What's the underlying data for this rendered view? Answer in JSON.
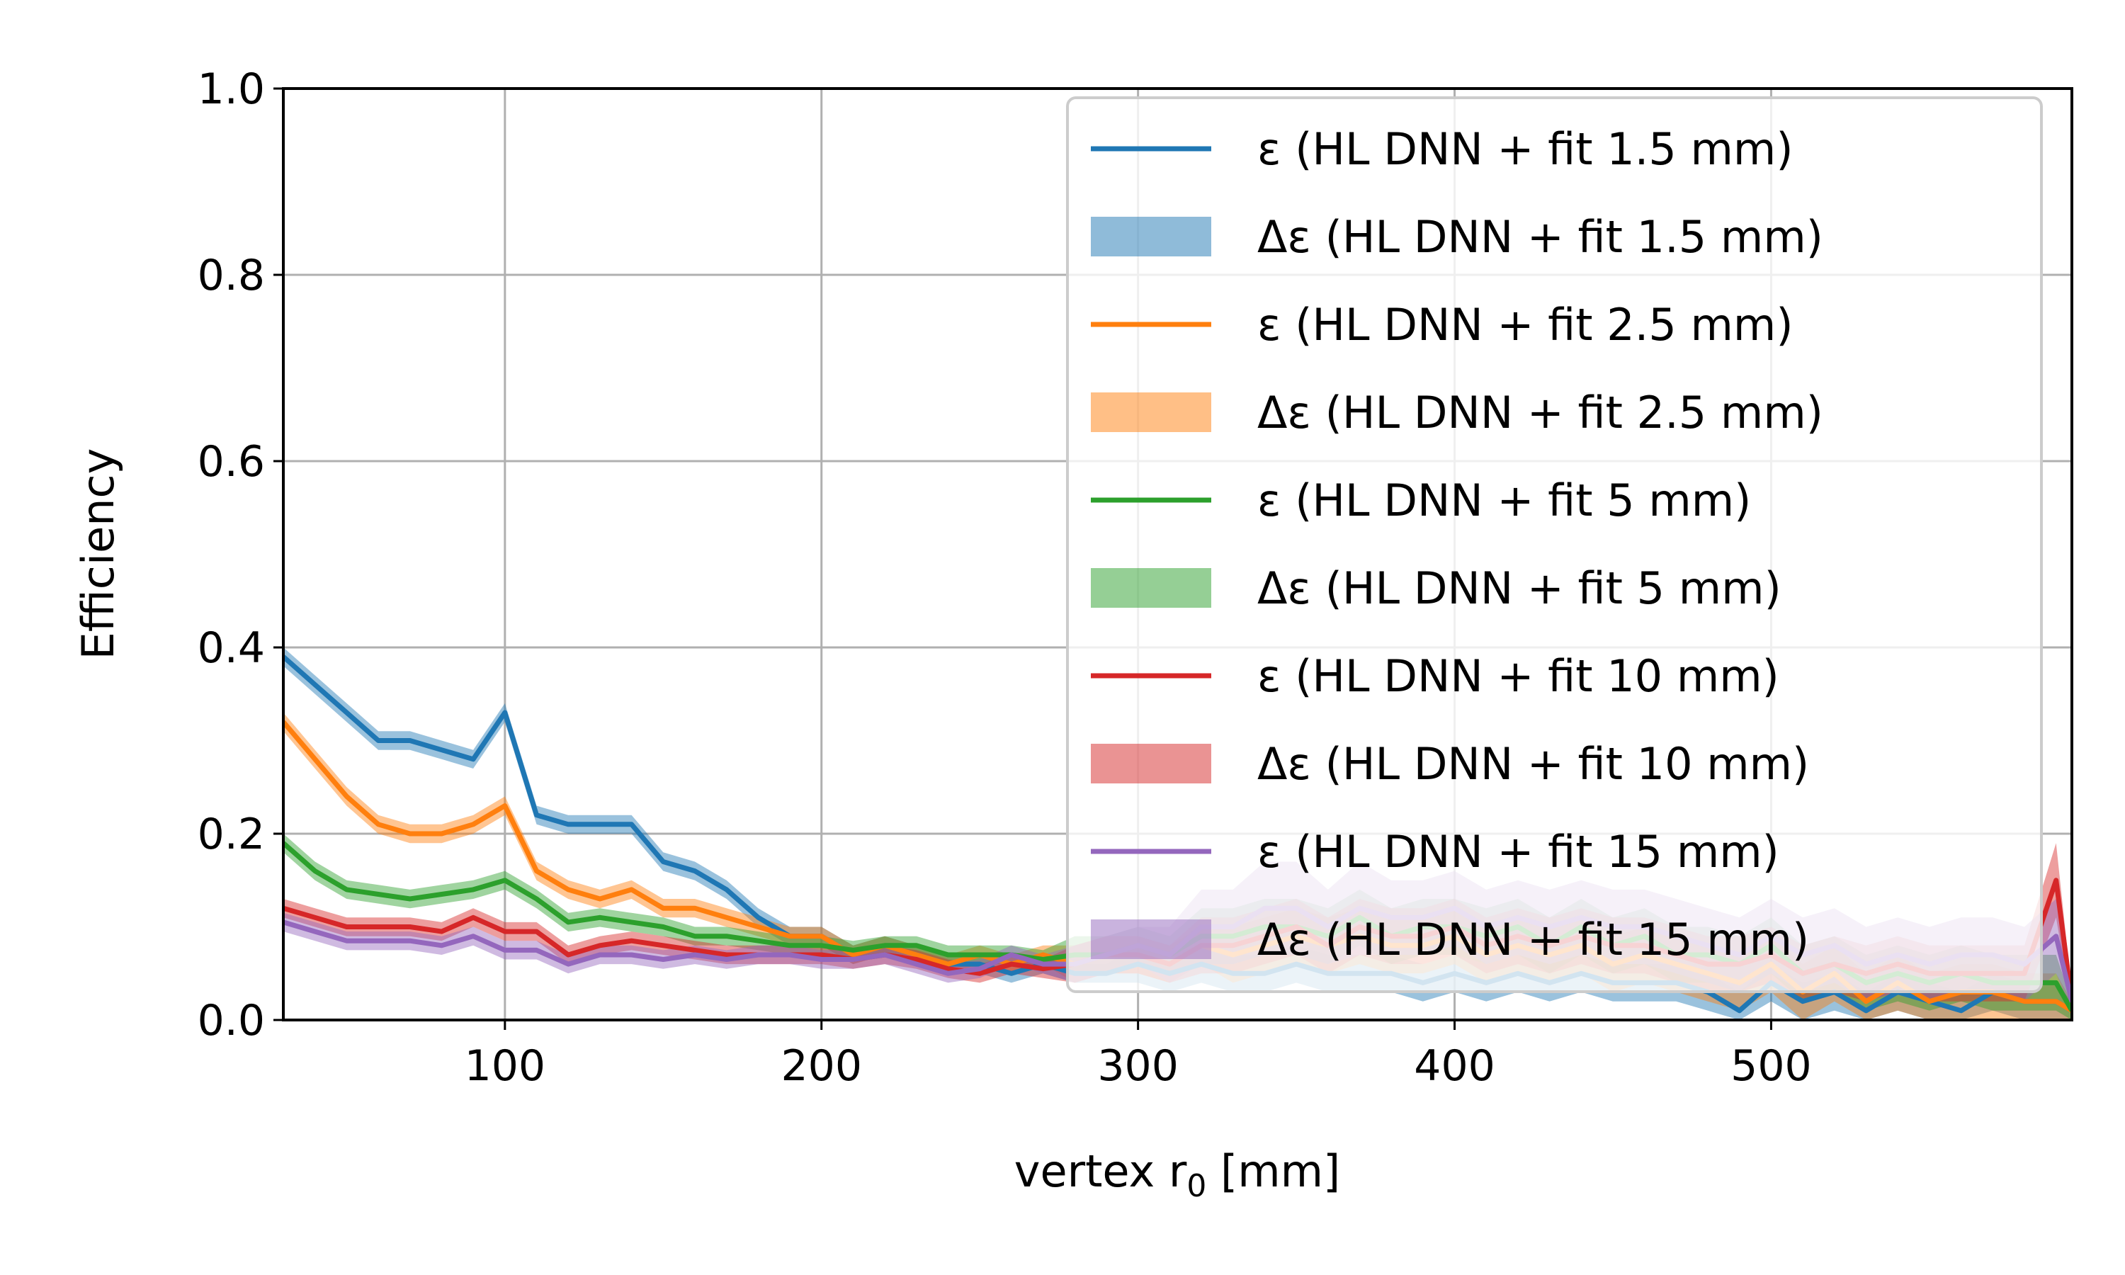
{
  "chart_data": {
    "type": "line",
    "title": "",
    "xlabel": "vertex r",
    "xlabel_subscript": "0",
    "xlabel_unit": " [mm]",
    "ylabel": "Efficiency",
    "xlim": [
      30,
      595
    ],
    "ylim": [
      0.0,
      1.0
    ],
    "xticks": [
      100,
      200,
      300,
      400,
      500
    ],
    "xtick_labels": [
      "100",
      "200",
      "300",
      "400",
      "500"
    ],
    "yticks": [
      0.0,
      0.2,
      0.4,
      0.6,
      0.8,
      1.0
    ],
    "ytick_labels": [
      "0.0",
      "0.2",
      "0.4",
      "0.6",
      "0.8",
      "1.0"
    ],
    "grid": true,
    "legend_position": "top-right",
    "x": [
      30,
      40,
      50,
      60,
      70,
      80,
      90,
      100,
      110,
      120,
      130,
      140,
      150,
      160,
      170,
      180,
      190,
      200,
      210,
      220,
      230,
      240,
      250,
      260,
      270,
      280,
      290,
      300,
      310,
      320,
      330,
      340,
      350,
      360,
      370,
      380,
      390,
      400,
      410,
      420,
      430,
      440,
      450,
      460,
      470,
      480,
      490,
      500,
      510,
      520,
      530,
      540,
      550,
      560,
      570,
      580,
      590,
      595
    ],
    "series": [
      {
        "name": "ε (HL DNN + fit 1.5 mm)",
        "band_name": "Δε (HL DNN + fit 1.5 mm)",
        "color": "#1f77b4",
        "band_color": "#1f77b4",
        "y": [
          0.39,
          0.36,
          0.33,
          0.3,
          0.3,
          0.29,
          0.28,
          0.33,
          0.22,
          0.21,
          0.21,
          0.21,
          0.17,
          0.16,
          0.14,
          0.11,
          0.09,
          0.09,
          0.07,
          0.08,
          0.07,
          0.06,
          0.06,
          0.05,
          0.06,
          0.05,
          0.05,
          0.06,
          0.05,
          0.06,
          0.05,
          0.05,
          0.06,
          0.05,
          0.05,
          0.05,
          0.04,
          0.05,
          0.04,
          0.05,
          0.04,
          0.05,
          0.04,
          0.04,
          0.04,
          0.03,
          0.01,
          0.04,
          0.02,
          0.03,
          0.01,
          0.03,
          0.02,
          0.01,
          0.03,
          0.02,
          0.02,
          0.01
        ],
        "err": [
          0.01,
          0.01,
          0.01,
          0.01,
          0.01,
          0.01,
          0.01,
          0.01,
          0.01,
          0.01,
          0.01,
          0.01,
          0.01,
          0.01,
          0.01,
          0.01,
          0.01,
          0.01,
          0.01,
          0.01,
          0.01,
          0.01,
          0.01,
          0.01,
          0.01,
          0.01,
          0.01,
          0.02,
          0.02,
          0.02,
          0.02,
          0.02,
          0.02,
          0.02,
          0.02,
          0.02,
          0.02,
          0.02,
          0.02,
          0.02,
          0.02,
          0.02,
          0.02,
          0.02,
          0.02,
          0.02,
          0.02,
          0.02,
          0.02,
          0.02,
          0.02,
          0.02,
          0.02,
          0.02,
          0.02,
          0.02,
          0.02,
          0.01
        ]
      },
      {
        "name": "ε (HL DNN + fit 2.5 mm)",
        "band_name": "Δε (HL DNN + fit 2.5 mm)",
        "color": "#ff7f0e",
        "band_color": "#ff7f0e",
        "y": [
          0.32,
          0.28,
          0.24,
          0.21,
          0.2,
          0.2,
          0.21,
          0.23,
          0.16,
          0.14,
          0.13,
          0.14,
          0.12,
          0.12,
          0.11,
          0.1,
          0.09,
          0.09,
          0.07,
          0.08,
          0.07,
          0.06,
          0.07,
          0.06,
          0.07,
          0.06,
          0.07,
          0.07,
          0.06,
          0.08,
          0.07,
          0.08,
          0.09,
          0.08,
          0.09,
          0.08,
          0.08,
          0.09,
          0.07,
          0.08,
          0.07,
          0.08,
          0.06,
          0.07,
          0.06,
          0.05,
          0.04,
          0.06,
          0.03,
          0.05,
          0.02,
          0.04,
          0.02,
          0.03,
          0.03,
          0.02,
          0.02,
          0.01
        ],
        "err": [
          0.01,
          0.01,
          0.01,
          0.01,
          0.01,
          0.01,
          0.01,
          0.01,
          0.01,
          0.01,
          0.01,
          0.01,
          0.01,
          0.01,
          0.01,
          0.01,
          0.01,
          0.01,
          0.01,
          0.01,
          0.01,
          0.01,
          0.01,
          0.01,
          0.01,
          0.02,
          0.02,
          0.02,
          0.02,
          0.02,
          0.03,
          0.03,
          0.03,
          0.03,
          0.03,
          0.03,
          0.03,
          0.03,
          0.03,
          0.03,
          0.03,
          0.03,
          0.03,
          0.03,
          0.03,
          0.03,
          0.03,
          0.03,
          0.03,
          0.03,
          0.03,
          0.03,
          0.03,
          0.03,
          0.03,
          0.03,
          0.03,
          0.01
        ]
      },
      {
        "name": "ε (HL DNN + fit 5 mm)",
        "band_name": "Δε (HL DNN + fit 5 mm)",
        "color": "#2ca02c",
        "band_color": "#2ca02c",
        "y": [
          0.19,
          0.16,
          0.14,
          0.135,
          0.13,
          0.135,
          0.14,
          0.15,
          0.13,
          0.105,
          0.11,
          0.105,
          0.1,
          0.09,
          0.09,
          0.085,
          0.08,
          0.08,
          0.075,
          0.08,
          0.08,
          0.07,
          0.07,
          0.07,
          0.065,
          0.07,
          0.07,
          0.08,
          0.07,
          0.09,
          0.09,
          0.1,
          0.1,
          0.09,
          0.11,
          0.09,
          0.1,
          0.1,
          0.09,
          0.1,
          0.08,
          0.1,
          0.08,
          0.09,
          0.07,
          0.07,
          0.06,
          0.08,
          0.05,
          0.06,
          0.04,
          0.05,
          0.04,
          0.05,
          0.04,
          0.04,
          0.04,
          0.01
        ],
        "err": [
          0.01,
          0.01,
          0.01,
          0.01,
          0.01,
          0.01,
          0.01,
          0.01,
          0.01,
          0.01,
          0.01,
          0.01,
          0.01,
          0.01,
          0.01,
          0.01,
          0.01,
          0.01,
          0.01,
          0.01,
          0.01,
          0.01,
          0.01,
          0.01,
          0.01,
          0.02,
          0.02,
          0.02,
          0.02,
          0.03,
          0.03,
          0.03,
          0.03,
          0.03,
          0.03,
          0.03,
          0.03,
          0.03,
          0.03,
          0.03,
          0.03,
          0.03,
          0.03,
          0.03,
          0.03,
          0.03,
          0.03,
          0.03,
          0.03,
          0.03,
          0.03,
          0.03,
          0.03,
          0.03,
          0.03,
          0.03,
          0.03,
          0.01
        ]
      },
      {
        "name": "ε (HL DNN + fit 10 mm)",
        "band_name": "Δε (HL DNN + fit 10 mm)",
        "color": "#d62728",
        "band_color": "#d62728",
        "y": [
          0.12,
          0.11,
          0.1,
          0.1,
          0.1,
          0.095,
          0.11,
          0.095,
          0.095,
          0.07,
          0.08,
          0.085,
          0.08,
          0.075,
          0.07,
          0.07,
          0.07,
          0.07,
          0.065,
          0.07,
          0.065,
          0.055,
          0.05,
          0.06,
          0.055,
          0.06,
          0.07,
          0.07,
          0.06,
          0.08,
          0.08,
          0.09,
          0.1,
          0.08,
          0.1,
          0.09,
          0.09,
          0.1,
          0.08,
          0.09,
          0.08,
          0.09,
          0.08,
          0.08,
          0.07,
          0.06,
          0.06,
          0.07,
          0.05,
          0.06,
          0.05,
          0.06,
          0.05,
          0.05,
          0.05,
          0.05,
          0.15,
          0.02
        ],
        "err": [
          0.01,
          0.01,
          0.01,
          0.01,
          0.01,
          0.01,
          0.01,
          0.01,
          0.01,
          0.01,
          0.01,
          0.01,
          0.01,
          0.01,
          0.01,
          0.01,
          0.01,
          0.01,
          0.01,
          0.01,
          0.01,
          0.01,
          0.01,
          0.01,
          0.01,
          0.02,
          0.02,
          0.02,
          0.02,
          0.03,
          0.03,
          0.03,
          0.03,
          0.03,
          0.03,
          0.03,
          0.03,
          0.03,
          0.03,
          0.03,
          0.03,
          0.03,
          0.03,
          0.03,
          0.03,
          0.03,
          0.03,
          0.03,
          0.03,
          0.03,
          0.03,
          0.03,
          0.03,
          0.03,
          0.03,
          0.03,
          0.04,
          0.01
        ]
      },
      {
        "name": "ε (HL DNN + fit 15 mm)",
        "band_name": "Δε (HL DNN + fit 15 mm)",
        "color": "#9467bd",
        "band_color": "#9467bd",
        "y": [
          0.105,
          0.095,
          0.085,
          0.085,
          0.085,
          0.08,
          0.09,
          0.075,
          0.075,
          0.06,
          0.07,
          0.07,
          0.065,
          0.07,
          0.065,
          0.07,
          0.07,
          0.065,
          0.065,
          0.07,
          0.06,
          0.05,
          0.055,
          0.07,
          0.06,
          0.06,
          0.07,
          0.08,
          0.07,
          0.1,
          0.1,
          0.12,
          0.12,
          0.1,
          0.12,
          0.11,
          0.11,
          0.12,
          0.1,
          0.11,
          0.1,
          0.11,
          0.1,
          0.1,
          0.09,
          0.08,
          0.07,
          0.09,
          0.07,
          0.08,
          0.06,
          0.07,
          0.06,
          0.07,
          0.07,
          0.06,
          0.09,
          0.02
        ],
        "err": [
          0.01,
          0.01,
          0.01,
          0.01,
          0.01,
          0.01,
          0.01,
          0.01,
          0.01,
          0.01,
          0.01,
          0.01,
          0.01,
          0.01,
          0.01,
          0.01,
          0.01,
          0.01,
          0.01,
          0.01,
          0.01,
          0.01,
          0.01,
          0.01,
          0.01,
          0.02,
          0.02,
          0.02,
          0.03,
          0.04,
          0.04,
          0.05,
          0.05,
          0.04,
          0.05,
          0.04,
          0.04,
          0.04,
          0.04,
          0.04,
          0.04,
          0.04,
          0.04,
          0.04,
          0.04,
          0.04,
          0.04,
          0.04,
          0.04,
          0.04,
          0.04,
          0.04,
          0.04,
          0.04,
          0.04,
          0.04,
          0.04,
          0.01
        ]
      }
    ]
  }
}
